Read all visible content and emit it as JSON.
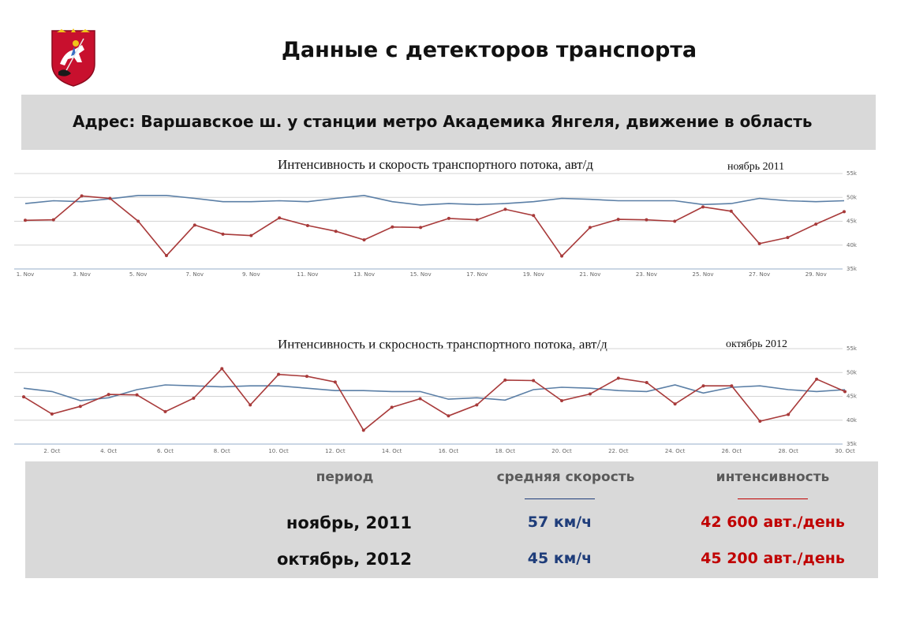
{
  "page": {
    "title": "Данные с детекторов транспорта",
    "address": "Адрес: Варшавское ш. у станции метро Академика Янгеля, движение в область",
    "logo_icon": "moscow-coat-of-arms-icon"
  },
  "colors": {
    "speed_series": "#5b7fa6",
    "intensity_series": "#a83a3a",
    "speed_text": "#1f3d7a",
    "intensity_text": "#c00000"
  },
  "chart_data": [
    {
      "type": "line",
      "title": "Интенсивность и скорость транспортного потока, авт/д",
      "period_label": "ноябрь 2011",
      "x_tick_labels": [
        "1. Nov",
        "3. Nov",
        "5. Nov",
        "7. Nov",
        "9. Nov",
        "11. Nov",
        "13. Nov",
        "15. Nov",
        "17. Nov",
        "19. Nov",
        "21. Nov",
        "23. Nov",
        "25. Nov",
        "27. Nov",
        "29. Nov"
      ],
      "y_tick_labels": [
        "55k",
        "50k",
        "45k",
        "40k",
        "35k"
      ],
      "ylim": [
        35000,
        55000
      ],
      "grid": true,
      "series": [
        {
          "values": [
            48700,
            49300,
            49100,
            49700,
            50400,
            50400,
            49800,
            49100,
            49100,
            49300,
            49100,
            49800,
            50400,
            49100,
            48400,
            48700,
            48500,
            48700,
            49100,
            49800,
            49600,
            49300,
            49300,
            49300,
            48500,
            48700,
            49800,
            49300,
            49100,
            49300
          ]
        },
        {
          "values": [
            45200,
            45300,
            50300,
            49800,
            45000,
            37800,
            44200,
            42300,
            42000,
            45700,
            44100,
            42900,
            41100,
            43800,
            43700,
            45600,
            45300,
            47500,
            46200,
            37700,
            43700,
            45400,
            45300,
            45000,
            48000,
            47100,
            40300,
            41600,
            44400,
            47000
          ]
        }
      ]
    },
    {
      "type": "line",
      "title": "Интенсивность и скросность транспортного потока, авт/д",
      "period_label": "октябрь 2012",
      "x_tick_labels": [
        "2. Oct",
        "4. Oct",
        "6. Oct",
        "8. Oct",
        "10. Oct",
        "12. Oct",
        "14. Oct",
        "16. Oct",
        "18. Oct",
        "20. Oct",
        "22. Oct",
        "24. Oct",
        "26. Oct",
        "28. Oct",
        "30. Oct"
      ],
      "y_tick_labels": [
        "55k",
        "50k",
        "45k",
        "40k",
        "35k"
      ],
      "ylim": [
        35000,
        55000
      ],
      "grid": true,
      "series": [
        {
          "values": [
            46700,
            46000,
            44100,
            44700,
            46400,
            47400,
            47200,
            47000,
            47200,
            47200,
            46700,
            46200,
            46200,
            46000,
            46000,
            44400,
            44700,
            44200,
            46400,
            46900,
            46700,
            46200,
            46000,
            47400,
            45700,
            46900,
            47200,
            46400,
            46000,
            46400
          ]
        },
        {
          "values": [
            44900,
            41300,
            42900,
            45400,
            45300,
            41800,
            44600,
            50800,
            43200,
            49600,
            49200,
            48000,
            37900,
            42700,
            44500,
            40900,
            43200,
            48400,
            48300,
            44100,
            45500,
            48800,
            47900,
            43400,
            47200,
            47200,
            39800,
            41200,
            48600,
            46000
          ]
        }
      ]
    }
  ],
  "summary": {
    "headers": {
      "period": "период",
      "speed": "средняя скорость",
      "intensity": "интенсивность"
    },
    "rows": [
      {
        "period": "ноябрь, 2011",
        "speed": "57 км/ч",
        "intensity": "42 600 авт./день"
      },
      {
        "period": "октябрь, 2012",
        "speed": "45 км/ч",
        "intensity": "45 200 авт./день"
      }
    ]
  }
}
